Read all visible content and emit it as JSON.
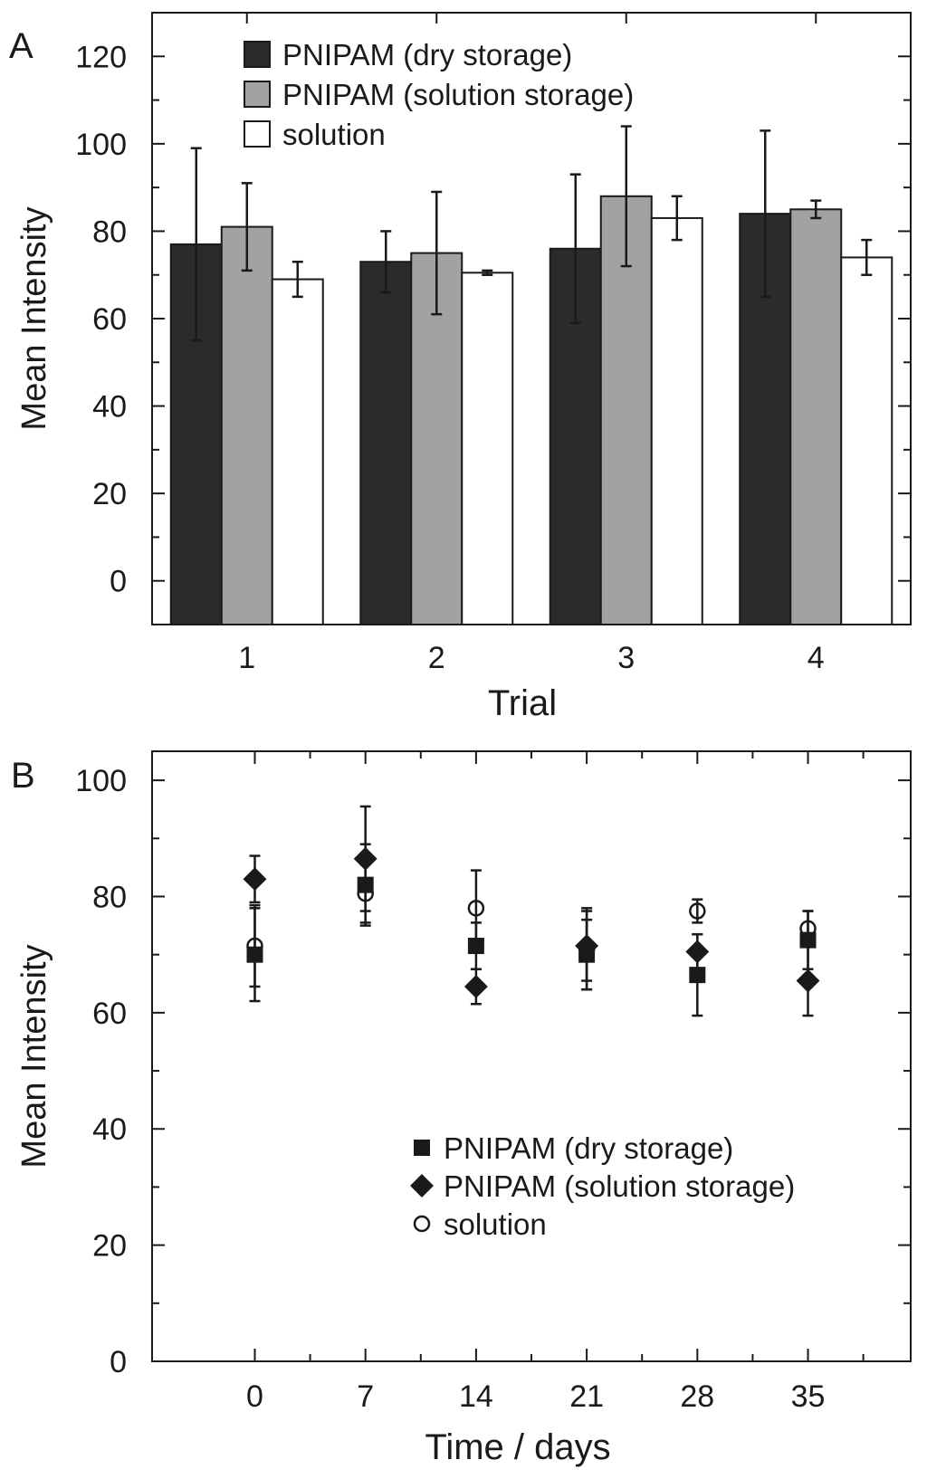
{
  "chart_data": [
    {
      "panel": "A",
      "type": "bar",
      "xlabel": "Trial",
      "ylabel": "Mean Intensity",
      "categories": [
        "1",
        "2",
        "3",
        "4"
      ],
      "ylim": [
        -10,
        130
      ],
      "yticks": [
        0,
        20,
        40,
        60,
        80,
        100,
        120
      ],
      "legend_position": "top-left",
      "series": [
        {
          "name": "PNIPAM (dry storage)",
          "fill": "#2b2b2b",
          "values": [
            77,
            73,
            76,
            84
          ],
          "errors": [
            22,
            7,
            17,
            19
          ]
        },
        {
          "name": "PNIPAM (solution storage)",
          "fill": "#a2a2a2",
          "values": [
            81,
            75,
            88,
            85
          ],
          "errors": [
            10,
            14,
            16,
            2
          ]
        },
        {
          "name": "solution",
          "fill": "#ffffff",
          "values": [
            69,
            70.5,
            83,
            74
          ],
          "errors": [
            4,
            0.5,
            5,
            4
          ]
        }
      ]
    },
    {
      "panel": "B",
      "type": "scatter",
      "xlabel": "Time / days",
      "ylabel": "Mean Intensity",
      "x": [
        0,
        7,
        14,
        21,
        28,
        35
      ],
      "xlim": [
        -6.5,
        41.5
      ],
      "ylim": [
        0,
        105
      ],
      "xticks": [
        0,
        7,
        14,
        21,
        28,
        35
      ],
      "yticks": [
        0,
        20,
        40,
        60,
        80,
        100
      ],
      "legend_position": "bottom-right",
      "series": [
        {
          "name": "PNIPAM (dry storage)",
          "marker": "square",
          "values": [
            70,
            82,
            71.5,
            70,
            66.5,
            72.5
          ],
          "errors": [
            8,
            7,
            4,
            6,
            7,
            5
          ]
        },
        {
          "name": "PNIPAM (solution storage)",
          "marker": "diamond",
          "values": [
            83,
            86.5,
            64.5,
            71.5,
            70.5,
            65.5
          ],
          "errors": [
            4,
            9,
            3,
            6,
            3,
            6
          ]
        },
        {
          "name": "solution",
          "marker": "circle",
          "values": [
            71.5,
            80.5,
            78,
            71,
            77.5,
            74.5
          ],
          "errors": [
            7,
            5,
            6.5,
            7,
            2,
            3
          ]
        }
      ]
    }
  ]
}
